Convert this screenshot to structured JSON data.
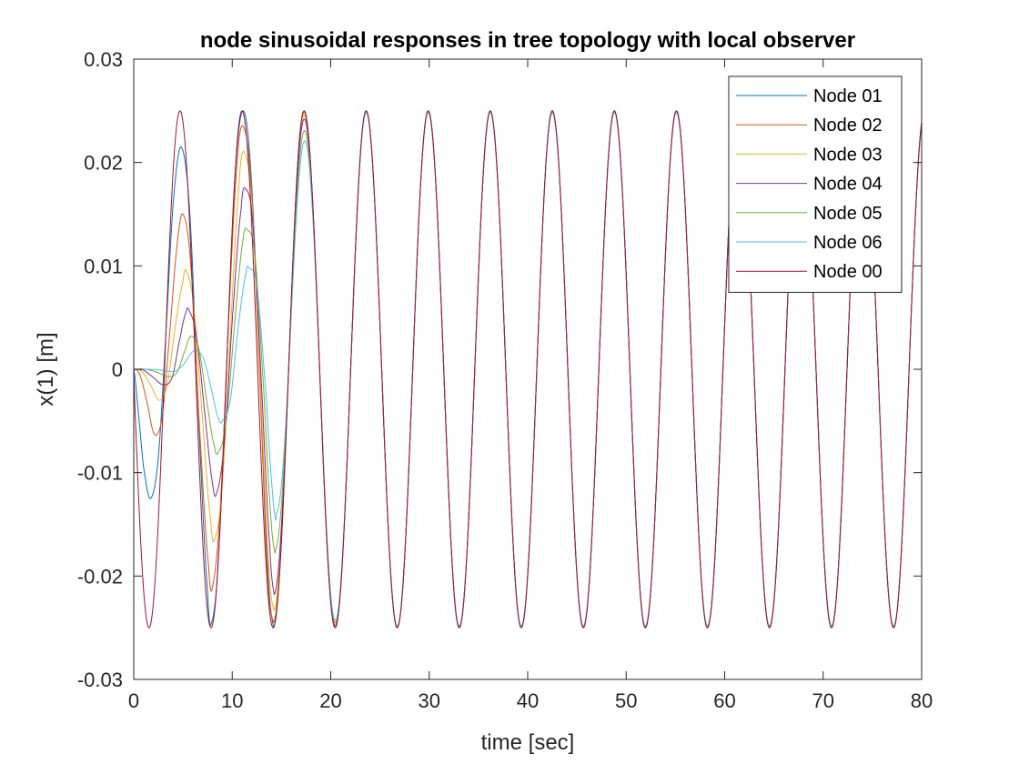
{
  "chart_data": {
    "type": "line",
    "title": "node sinusoidal responses in tree topology with local observer",
    "xlabel": "time [sec]",
    "ylabel": "x(1) [m]",
    "xlim": [
      0,
      80
    ],
    "ylim": [
      -0.03,
      0.03
    ],
    "xticks": [
      0,
      10,
      20,
      30,
      40,
      50,
      60,
      70,
      80
    ],
    "xtick_labels": [
      "0",
      "10",
      "20",
      "30",
      "40",
      "50",
      "60",
      "70",
      "80"
    ],
    "yticks": [
      -0.03,
      -0.02,
      -0.01,
      0,
      0.01,
      0.02,
      0.03
    ],
    "ytick_labels": [
      "-0.03",
      "-0.02",
      "-0.01",
      "0",
      "0.01",
      "0.02",
      "0.03"
    ],
    "grid": false,
    "legend_position": "top-right",
    "reference": {
      "amplitude": 0.025,
      "period_sec": 6.3,
      "phase_peaks_at_sec": [
        4.7,
        11.0,
        17.3,
        23.6,
        29.9,
        36.2,
        42.5,
        48.8,
        55.1,
        61.4,
        67.7,
        74.0
      ]
    },
    "series": [
      {
        "name": "Node 01",
        "color": "#0072BD",
        "points": [
          [
            0,
            0
          ],
          [
            0.5,
            -0.0045
          ],
          [
            1.0,
            -0.0095
          ],
          [
            1.7,
            -0.0125
          ],
          [
            2.5,
            -0.0085
          ],
          [
            3.3,
            0.004
          ],
          [
            4.0,
            0.016
          ],
          [
            4.8,
            0.0215
          ],
          [
            5.7,
            0.015
          ],
          [
            6.6,
            -0.005
          ],
          [
            7.5,
            -0.0215
          ],
          [
            7.9,
            -0.0245
          ],
          [
            8.6,
            -0.018
          ],
          [
            9.5,
            0.002
          ],
          [
            10.3,
            0.019
          ],
          [
            11.1,
            0.025
          ],
          [
            11.9,
            0.019
          ],
          [
            12.8,
            0.0
          ],
          [
            13.6,
            -0.019
          ],
          [
            14.2,
            -0.025
          ]
        ]
      },
      {
        "name": "Node 02",
        "color": "#D95319",
        "points": [
          [
            0,
            0
          ],
          [
            0.6,
            -0.0005
          ],
          [
            1.3,
            -0.003
          ],
          [
            2.1,
            -0.0063
          ],
          [
            2.9,
            -0.0045
          ],
          [
            3.7,
            0.004
          ],
          [
            4.4,
            0.012
          ],
          [
            5.0,
            0.015
          ],
          [
            5.8,
            0.01
          ],
          [
            6.7,
            -0.006
          ],
          [
            7.6,
            -0.019
          ],
          [
            8.0,
            -0.021
          ],
          [
            8.8,
            -0.013
          ],
          [
            9.7,
            0.006
          ],
          [
            10.5,
            0.02
          ],
          [
            11.1,
            0.0235
          ],
          [
            11.9,
            0.018
          ],
          [
            12.8,
            -0.001
          ],
          [
            13.6,
            -0.02
          ],
          [
            14.2,
            -0.0245
          ]
        ]
      },
      {
        "name": "Node 03",
        "color": "#EDB120",
        "points": [
          [
            0,
            0
          ],
          [
            0.8,
            -0.0002
          ],
          [
            1.7,
            -0.0015
          ],
          [
            2.6,
            -0.003
          ],
          [
            3.4,
            -0.0015
          ],
          [
            4.2,
            0.004
          ],
          [
            5.0,
            0.0085
          ],
          [
            5.3,
            0.0095
          ],
          [
            6.1,
            0.006
          ],
          [
            7.0,
            -0.005
          ],
          [
            7.8,
            -0.0145
          ],
          [
            8.2,
            -0.0165
          ],
          [
            9.0,
            -0.011
          ],
          [
            9.9,
            0.005
          ],
          [
            10.7,
            0.018
          ],
          [
            11.2,
            0.021
          ],
          [
            12.0,
            0.016
          ],
          [
            12.9,
            -0.002
          ],
          [
            13.7,
            -0.019
          ],
          [
            14.3,
            -0.0235
          ]
        ]
      },
      {
        "name": "Node 04",
        "color": "#7E2F8E",
        "points": [
          [
            0,
            0
          ],
          [
            1.0,
            -0.0001
          ],
          [
            2.0,
            -0.0008
          ],
          [
            3.0,
            -0.0015
          ],
          [
            3.9,
            -0.0008
          ],
          [
            4.7,
            0.003
          ],
          [
            5.3,
            0.0055
          ],
          [
            5.6,
            0.0057
          ],
          [
            6.4,
            0.003
          ],
          [
            7.3,
            -0.005
          ],
          [
            8.0,
            -0.011
          ],
          [
            8.4,
            -0.012
          ],
          [
            9.2,
            -0.007
          ],
          [
            10.1,
            0.006
          ],
          [
            10.9,
            0.0155
          ],
          [
            11.3,
            0.0175
          ],
          [
            12.1,
            0.014
          ],
          [
            13.0,
            -0.002
          ],
          [
            13.8,
            -0.017
          ],
          [
            14.3,
            -0.022
          ]
        ]
      },
      {
        "name": "Node 05",
        "color": "#77AC30",
        "points": [
          [
            0,
            0
          ],
          [
            1.2,
            0
          ],
          [
            2.4,
            -0.0003
          ],
          [
            3.5,
            -0.0007
          ],
          [
            4.4,
            -0.0003
          ],
          [
            5.2,
            0.0018
          ],
          [
            5.8,
            0.0032
          ],
          [
            6.6,
            0.002
          ],
          [
            7.4,
            -0.003
          ],
          [
            8.2,
            -0.0075
          ],
          [
            8.6,
            -0.008
          ],
          [
            9.4,
            -0.005
          ],
          [
            10.3,
            0.005
          ],
          [
            11.1,
            0.0125
          ],
          [
            11.5,
            0.0135
          ],
          [
            12.3,
            0.011
          ],
          [
            13.2,
            -0.002
          ],
          [
            13.9,
            -0.014
          ],
          [
            14.4,
            -0.018
          ]
        ]
      },
      {
        "name": "Node 06",
        "color": "#4DBEEE",
        "points": [
          [
            0,
            0
          ],
          [
            1.5,
            0
          ],
          [
            3.0,
            -0.0001
          ],
          [
            4.2,
            -0.0002
          ],
          [
            5.1,
            0.0005
          ],
          [
            5.8,
            0.0015
          ],
          [
            6.3,
            0.0018
          ],
          [
            7.1,
            0.001
          ],
          [
            7.9,
            -0.002
          ],
          [
            8.6,
            -0.0048
          ],
          [
            9.0,
            -0.005
          ],
          [
            9.8,
            -0.003
          ],
          [
            10.6,
            0.004
          ],
          [
            11.4,
            0.0093
          ],
          [
            11.7,
            0.0098
          ],
          [
            12.5,
            0.008
          ],
          [
            13.4,
            -0.002
          ],
          [
            14.1,
            -0.012
          ],
          [
            14.5,
            -0.0148
          ]
        ]
      },
      {
        "name": "Node 00",
        "color": "#A2142F",
        "points": []
      }
    ]
  }
}
